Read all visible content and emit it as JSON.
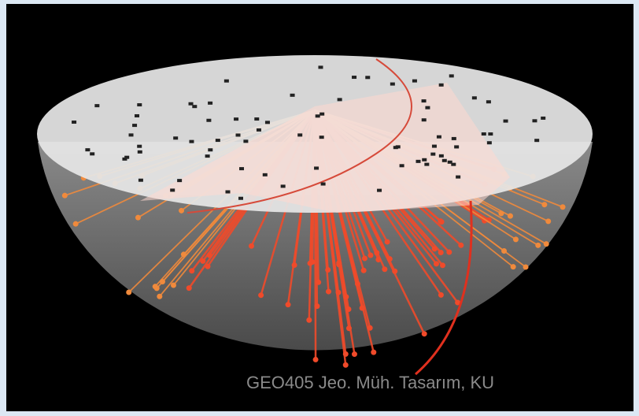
{
  "caption": "GEO405 Jeo. Müh. Tasarım, KU"
}
